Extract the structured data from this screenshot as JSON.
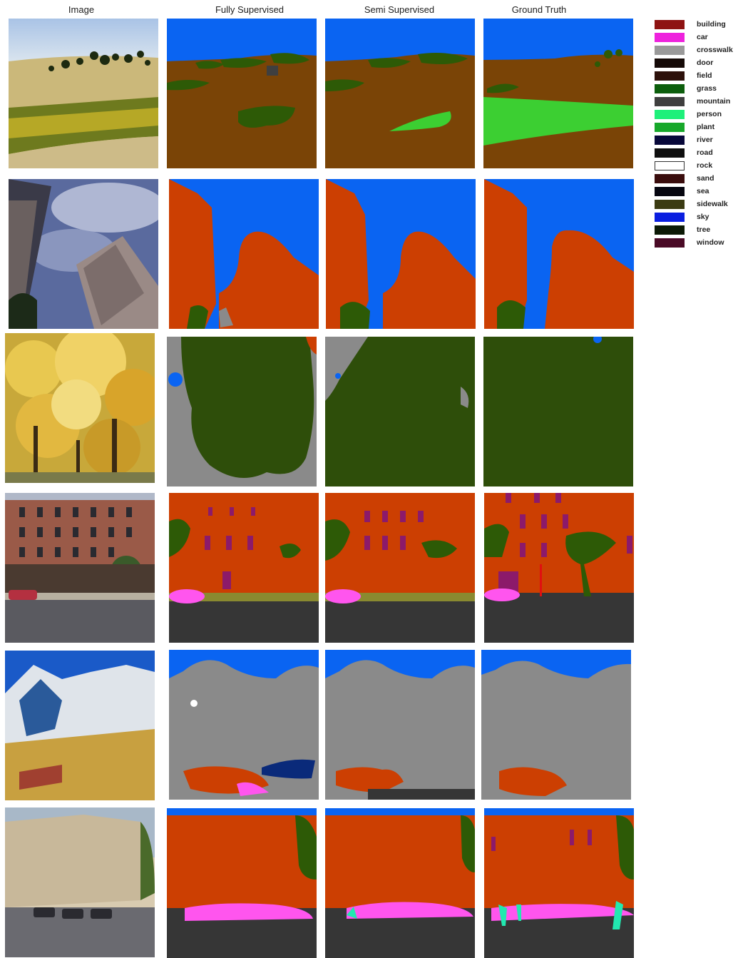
{
  "headers": {
    "image": "Image",
    "fully": "Fully Supervised",
    "semi": "Semi Supervised",
    "gt": "Ground Truth"
  },
  "legend": [
    {
      "label": "building",
      "color": "#8e1312"
    },
    {
      "label": "car",
      "color": "#ee22dd"
    },
    {
      "label": "crosswalk",
      "color": "#9a9a9a"
    },
    {
      "label": "door",
      "color": "#150a07"
    },
    {
      "label": "field",
      "color": "#2d110b"
    },
    {
      "label": "grass",
      "color": "#0c5e0c"
    },
    {
      "label": "mountain",
      "color": "#3f3f3f"
    },
    {
      "label": "person",
      "color": "#1ef07a"
    },
    {
      "label": "plant",
      "color": "#17a82a"
    },
    {
      "label": "river",
      "color": "#08083a"
    },
    {
      "label": "road",
      "color": "#0f0f0f"
    },
    {
      "label": "rock",
      "color": "#ffffff"
    },
    {
      "label": "sand",
      "color": "#3a0d0d"
    },
    {
      "label": "sea",
      "color": "#060610"
    },
    {
      "label": "sidewalk",
      "color": "#3b3b12"
    },
    {
      "label": "sky",
      "color": "#0a1ee0"
    },
    {
      "label": "tree",
      "color": "#0c1a06"
    },
    {
      "label": "window",
      "color": "#4a0a26"
    }
  ],
  "palette": {
    "sky": "#0a64f2",
    "field": "#7a4406",
    "grass": "#2d5a06",
    "tree": "#2e4e0a",
    "plant": "#3ccf32",
    "building": "#cc3f02",
    "rock": "#8a8a8a",
    "road": "#363636",
    "sidewalk": "#8a8a30",
    "car": "#ff55ee",
    "window": "#8c1a6a",
    "person": "#22e8b0",
    "river": "#0a2a7a",
    "door": "#3a0a0a"
  }
}
